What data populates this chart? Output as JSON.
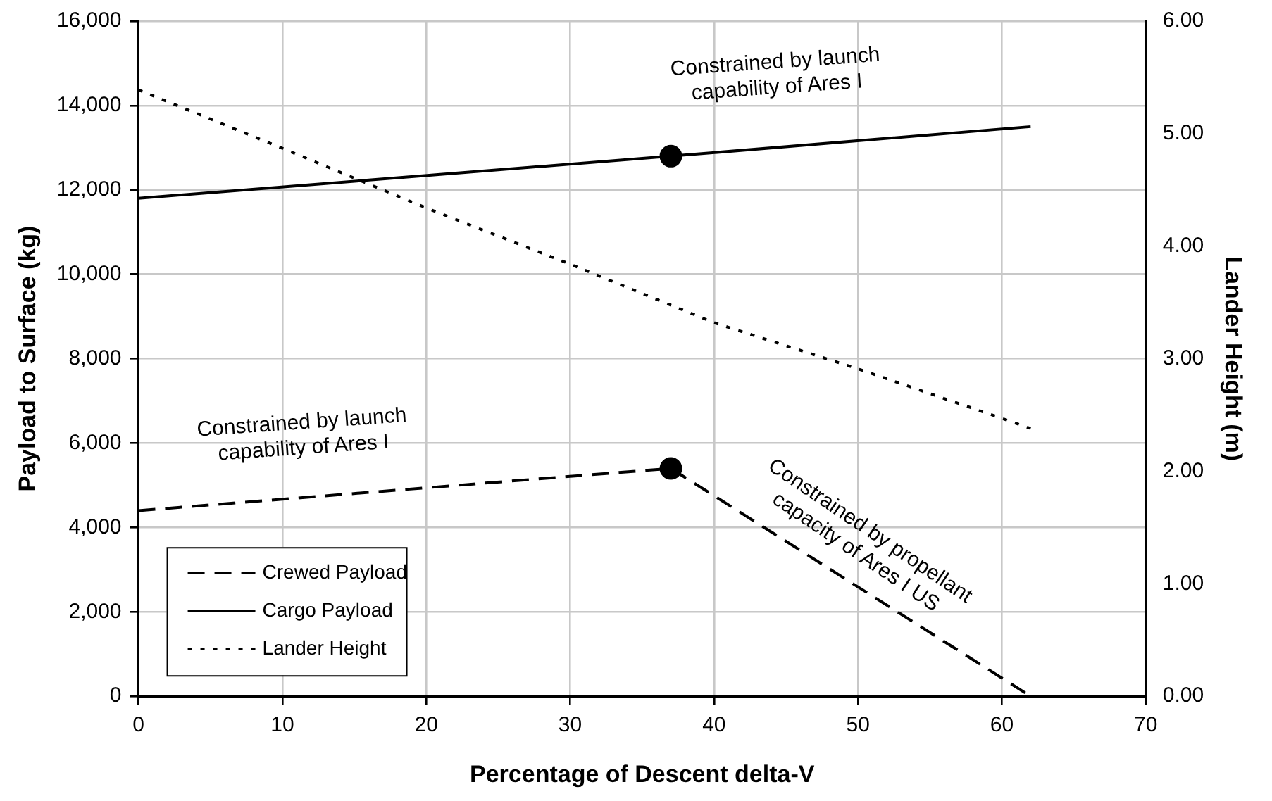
{
  "chart_data": {
    "type": "line",
    "xlabel": "Percentage of Descent delta-V",
    "ylabel": "Payload to Surface (kg)",
    "y2label": "Lander Height (m)",
    "xlim": [
      0,
      70
    ],
    "xticks": [
      0,
      10,
      20,
      30,
      40,
      50,
      60,
      70
    ],
    "ylim": [
      0,
      16000
    ],
    "yticks": [
      {
        "value": 0,
        "label": "0"
      },
      {
        "value": 2000,
        "label": "2,000"
      },
      {
        "value": 4000,
        "label": "4,000"
      },
      {
        "value": 6000,
        "label": "6,000"
      },
      {
        "value": 8000,
        "label": "8,000"
      },
      {
        "value": 10000,
        "label": "10,000"
      },
      {
        "value": 12000,
        "label": "12,000"
      },
      {
        "value": 14000,
        "label": "14,000"
      },
      {
        "value": 16000,
        "label": "16,000"
      }
    ],
    "y2lim": [
      0,
      6
    ],
    "y2ticks": [
      {
        "value": 0,
        "label": "0.00"
      },
      {
        "value": 1,
        "label": "1.00"
      },
      {
        "value": 2,
        "label": "2.00"
      },
      {
        "value": 3,
        "label": "3.00"
      },
      {
        "value": 4,
        "label": "4.00"
      },
      {
        "value": 5,
        "label": "5.00"
      },
      {
        "value": 6,
        "label": "6.00"
      }
    ],
    "grid": true,
    "legend": "bottom left",
    "series": [
      {
        "name": "Crewed Payload",
        "color": "#000000",
        "line_style": "dashed",
        "x": [
          0,
          37,
          62
        ],
        "values": [
          4400,
          5400,
          0
        ]
      },
      {
        "name": "Cargo Payload",
        "color": "#000000",
        "line_style": "solid",
        "x": [
          0,
          37,
          62
        ],
        "values": [
          11800,
          12800,
          13500
        ]
      },
      {
        "name": "Lander Height",
        "color": "#000000",
        "line_style": "dotted",
        "axis": "y2",
        "x": [
          0,
          10,
          20,
          30,
          40,
          50,
          60,
          62
        ],
        "values": [
          5.39,
          4.87,
          4.34,
          3.84,
          3.32,
          2.91,
          2.47,
          2.38
        ]
      },
      {
        "type": "scatter",
        "marker": "circle",
        "color": "#000000",
        "x": [
          37,
          37
        ],
        "values": [
          12800,
          5400
        ]
      }
    ],
    "annotations": [
      "Constrained by launch capability of Ares I",
      "Constrained by launch capability of Ares I",
      "Constrained by propellant capacity of Ares I US"
    ]
  }
}
